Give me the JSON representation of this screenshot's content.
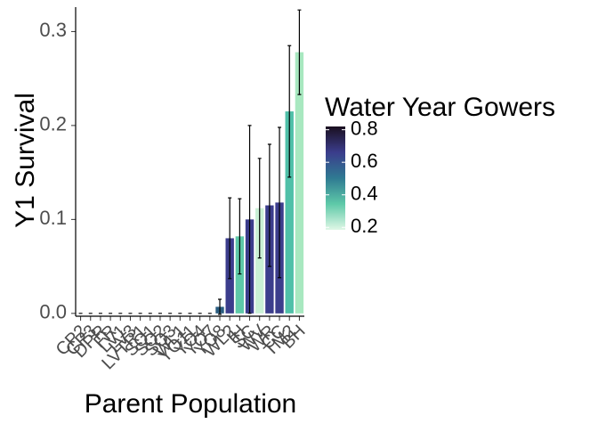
{
  "chart_data": {
    "type": "bar",
    "xlabel": "Parent Population",
    "ylabel": "Y1 Survival",
    "categories": [
      "CP2",
      "CP3",
      "DPR",
      "FR",
      "LV1",
      "LV3",
      "LVTR1",
      "SQ1",
      "SQ2",
      "SQ3",
      "WL1",
      "YO11",
      "YO4",
      "YO7",
      "YO8",
      "WL2",
      "IH",
      "SC",
      "WV",
      "WR",
      "CC",
      "TM2",
      "BH"
    ],
    "values": [
      0,
      0,
      0,
      0,
      0,
      0,
      0,
      0,
      0,
      0,
      0,
      0,
      0,
      0,
      0.007,
      0.08,
      0.082,
      0.1,
      0.112,
      0.115,
      0.118,
      0.215,
      0.278
    ],
    "errors": [
      0,
      0,
      0,
      0,
      0,
      0,
      0,
      0,
      0,
      0,
      0,
      0,
      0,
      0,
      0.008,
      0.043,
      0.04,
      0.1,
      0.053,
      0.065,
      0.08,
      0.07,
      0.045
    ],
    "colors": [
      "#3b3d8c",
      "#3b3d8c",
      "#2a5d80",
      "#3b3d8c",
      "#5ec9a8",
      "#2a1f45",
      "#3b3d8c",
      "#5ec9a8",
      "#3b3d8c",
      "#2a5d80",
      "#5ec9a8",
      "#3b3d8c",
      "#2a5d80",
      "#3b3d8c",
      "#2a5d80",
      "#3b3d8c",
      "#5ec9a8",
      "#3b3d8c",
      "#c9f0d5",
      "#3b3d8c",
      "#3b3d8c",
      "#4fc0a8",
      "#a8e8c0"
    ],
    "ylim": [
      -0.003,
      0.326
    ],
    "yticks": [
      {
        "value": 0,
        "label": "0.0"
      },
      0.1,
      0.2,
      0.3
    ],
    "colorbar": {
      "title": "Water Year Gowers",
      "lim": [
        0.185,
        0.82
      ],
      "ticks": [
        0.2,
        0.4,
        0.6,
        0.8
      ],
      "colors": [
        "#dff7e6",
        "#5ec9a8",
        "#2f7a92",
        "#3b3d8c",
        "#1a0f1f"
      ]
    }
  }
}
